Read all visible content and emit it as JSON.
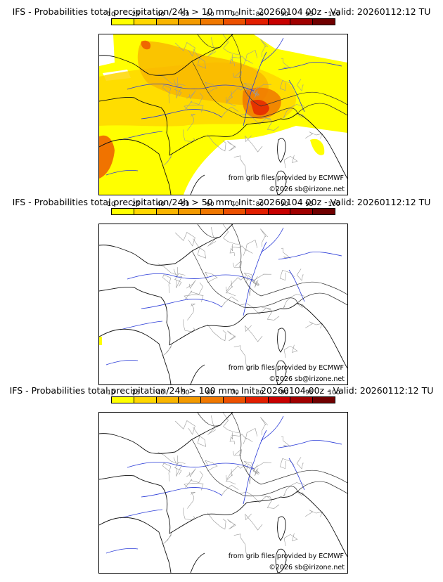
{
  "colorbar": {
    "ticks": [
      "10",
      "25",
      "40",
      "50",
      "60",
      "70",
      "80",
      "90",
      "95",
      "100"
    ],
    "colors": [
      "#ffff00",
      "#ffd700",
      "#f9b500",
      "#f39a00",
      "#f07800",
      "#ec5000",
      "#e21e00",
      "#c80000",
      "#a00000",
      "#700000"
    ]
  },
  "panels": [
    {
      "title": "IFS - Probabilities total precipitation/24h > 10 mm, Init: 20260104 00z - Valid: 20260112:12 TU",
      "credit_source": "from grib files provided by ECMWF",
      "credit_copy": "©2026 sb@irizone.net",
      "shading": "heavy"
    },
    {
      "title": "IFS - Probabilities total precipitation/24h > 50 mm, Init: 20260104 00z - Valid: 20260112:12 TU",
      "credit_source": "from grib files provided by ECMWF",
      "credit_copy": "©2026 sb@irizone.net",
      "shading": "light"
    },
    {
      "title": "IFS - Probabilities total precipitation/24h > 100 mm, Init: 20260104 00z - Valid: 20260112:12 TU",
      "credit_source": "from grib files provided by ECMWF",
      "credit_copy": "©2026 sb@irizone.net",
      "shading": "none"
    }
  ]
}
